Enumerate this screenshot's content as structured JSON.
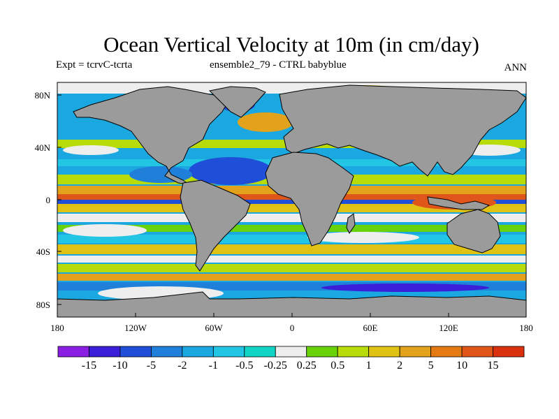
{
  "title": "Ocean Vertical Velocity at 10m (in cm/day)",
  "subtitle_left": "Expt = tcrvC-tcrta",
  "subtitle_center": "ensemble2_79 - CTRL babyblue",
  "subtitle_right": "ANN",
  "lat_labels": [
    "80N",
    "40N",
    "0",
    "40S",
    "80S"
  ],
  "lon_labels": [
    "180",
    "120W",
    "60W",
    "0",
    "60E",
    "120E",
    "180"
  ],
  "colorbar": {
    "labels": [
      "-15",
      "-10",
      "-5",
      "-2",
      "-1",
      "-0.5",
      "-0.25",
      "0.25",
      "0.5",
      "1",
      "2",
      "5",
      "10",
      "15"
    ],
    "colors": [
      "#8a1fe3",
      "#3a1fd8",
      "#1f4fd8",
      "#1f7fd9",
      "#1ba8e0",
      "#22c6e4",
      "#10d4c4",
      "#eeeeee",
      "#68d20a",
      "#b8dc0a",
      "#e0c214",
      "#e2a21c",
      "#e47a12",
      "#e0561a",
      "#d9300d"
    ]
  },
  "colors": {
    "land": "#9b9b9b",
    "coast": "#000000",
    "frame": "#000000"
  }
}
